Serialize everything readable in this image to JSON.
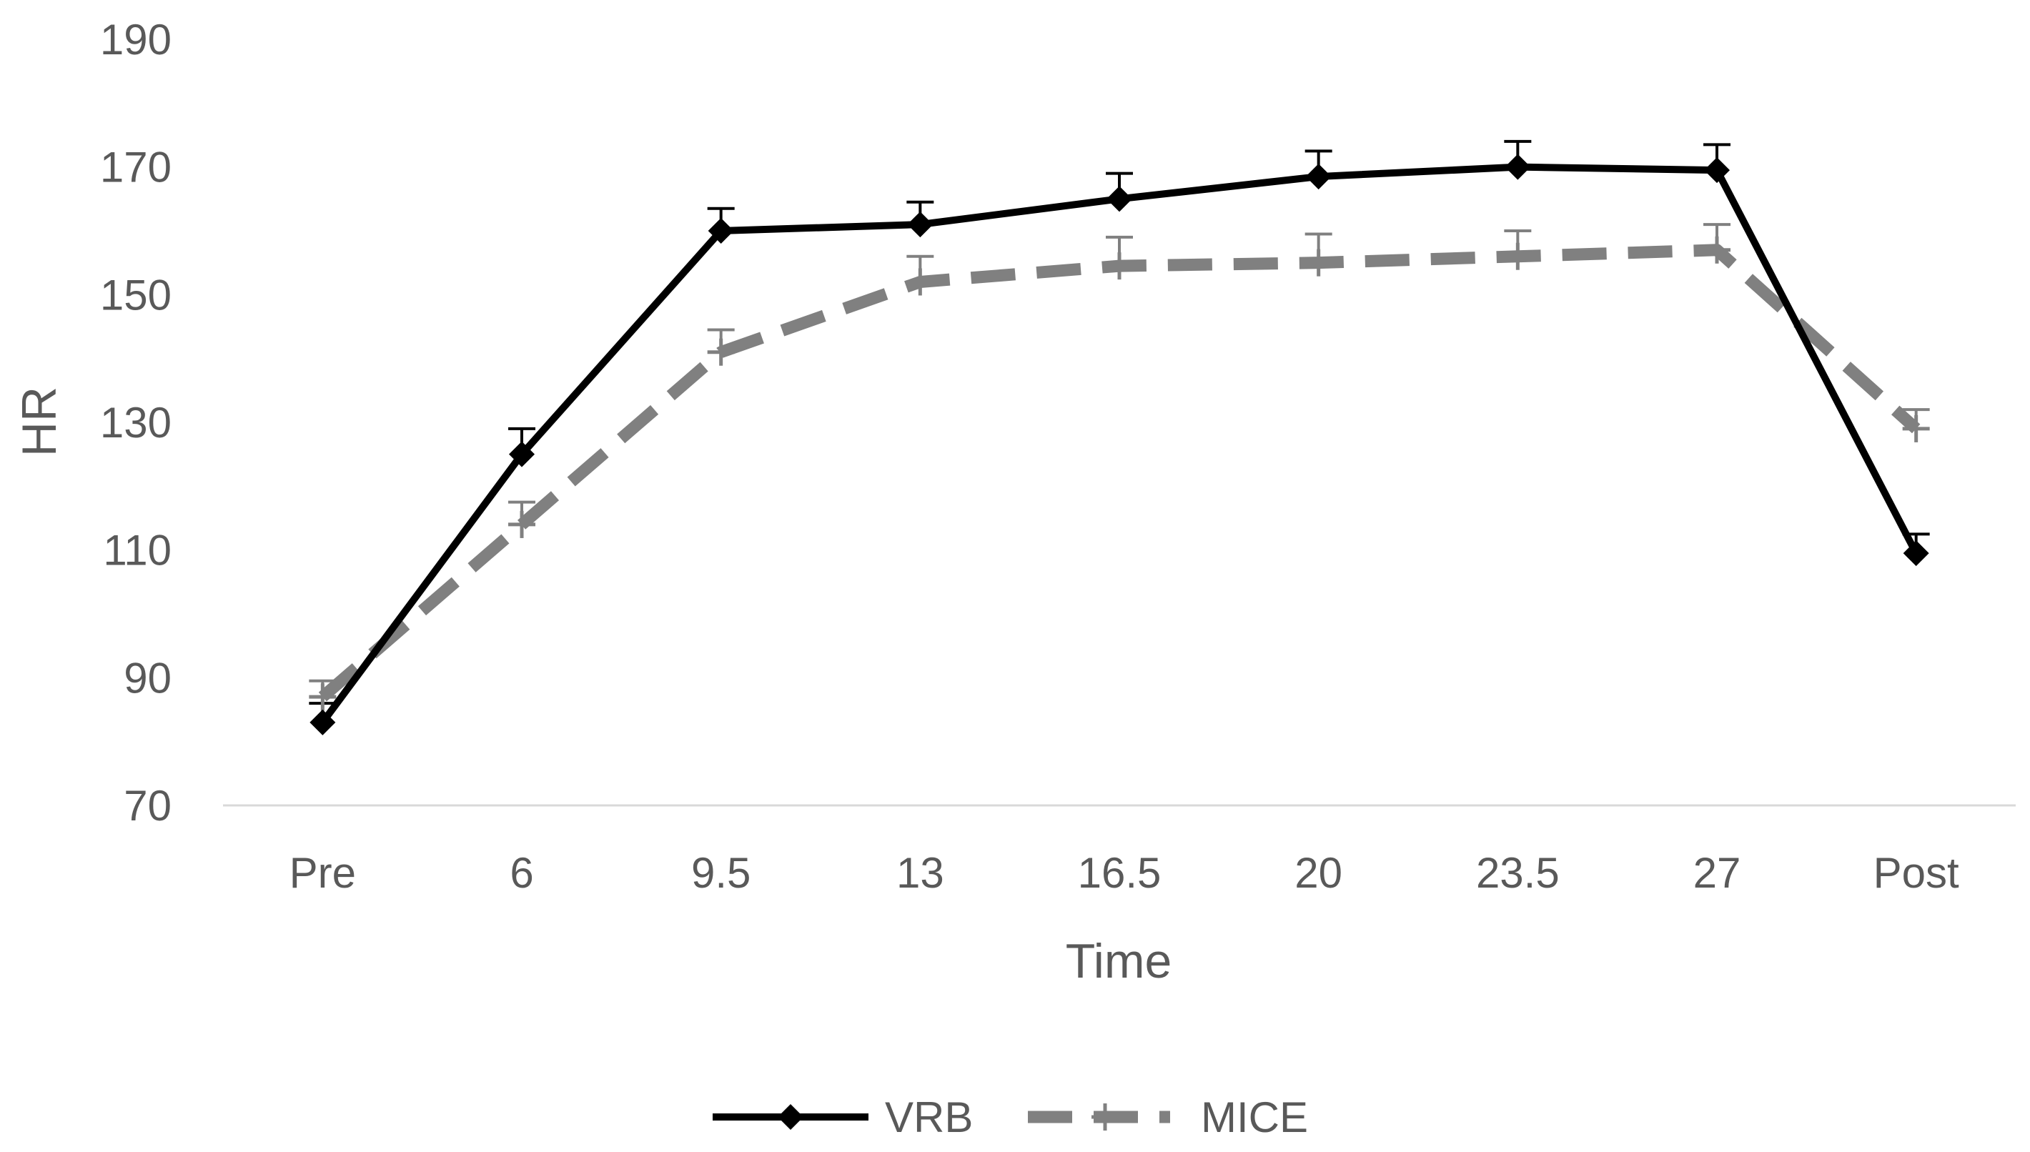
{
  "chart_data": {
    "type": "line",
    "title": "",
    "xlabel": "Time",
    "ylabel": "HR",
    "categories": [
      "Pre",
      "6",
      "9.5",
      "13",
      "16.5",
      "20",
      "23.5",
      "27",
      "Post"
    ],
    "ylim": [
      70,
      190
    ],
    "yticks": [
      70,
      90,
      110,
      130,
      150,
      170,
      190
    ],
    "grid": false,
    "legend_position": "bottom",
    "series": [
      {
        "name": "VRB",
        "color": "#000000",
        "line_style": "solid",
        "marker": "diamond",
        "values": [
          83,
          125,
          160,
          161,
          165,
          168.5,
          170,
          169.5,
          109.5
        ],
        "error_upper": [
          3,
          4,
          3.5,
          3.5,
          4,
          4,
          4,
          4,
          3
        ]
      },
      {
        "name": "MICE",
        "color": "#808080",
        "line_style": "dashed",
        "marker": "plus",
        "values": [
          87,
          114,
          141,
          152,
          154.5,
          155,
          156,
          157,
          129
        ],
        "error_upper": [
          2.5,
          3.5,
          3.5,
          4,
          4.5,
          4.5,
          4,
          4,
          3
        ]
      }
    ]
  }
}
